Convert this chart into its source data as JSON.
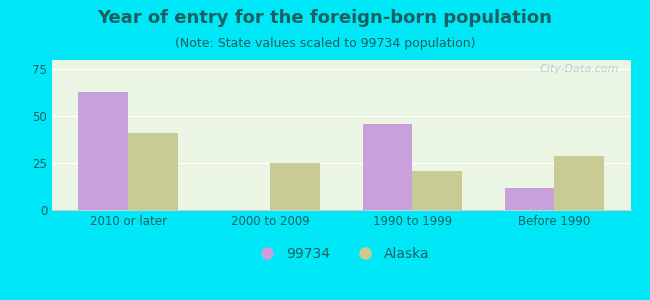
{
  "title": "Year of entry for the foreign-born population",
  "subtitle": "(Note: State values scaled to 99734 population)",
  "categories": [
    "2010 or later",
    "2000 to 2009",
    "1990 to 1999",
    "Before 1990"
  ],
  "series_99734": [
    63,
    0,
    46,
    12
  ],
  "series_alaska": [
    41,
    25,
    21,
    29
  ],
  "color_99734": "#c9a0dc",
  "color_alaska": "#c8cc94",
  "background_outer": "#00e8f8",
  "background_inner": "#eaf5e4",
  "ylim": [
    0,
    80
  ],
  "yticks": [
    0,
    25,
    50,
    75
  ],
  "bar_width": 0.35,
  "title_fontsize": 13,
  "subtitle_fontsize": 9,
  "legend_fontsize": 10,
  "tick_fontsize": 8.5,
  "text_color": "#1a6060",
  "watermark": "City-Data.com"
}
